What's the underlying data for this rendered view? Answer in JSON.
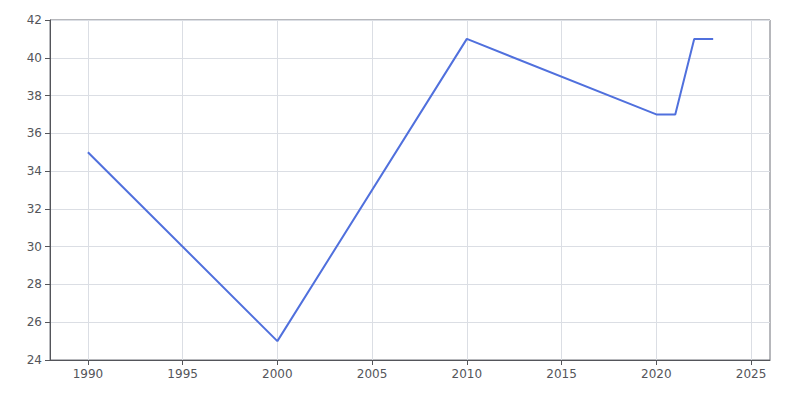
{
  "chart_data": {
    "type": "line",
    "x": [
      1990,
      2000,
      2010,
      2020,
      2021,
      2022,
      2023
    ],
    "values": [
      35,
      25,
      41,
      37,
      37,
      41,
      41
    ],
    "xlim": [
      1988,
      2026
    ],
    "xticks": [
      1990,
      1995,
      2000,
      2005,
      2010,
      2015,
      2020,
      2025
    ],
    "ylim": [
      24,
      42
    ],
    "yticks": [
      24,
      26,
      28,
      30,
      32,
      34,
      36,
      38,
      40,
      42
    ],
    "grid": true
  }
}
